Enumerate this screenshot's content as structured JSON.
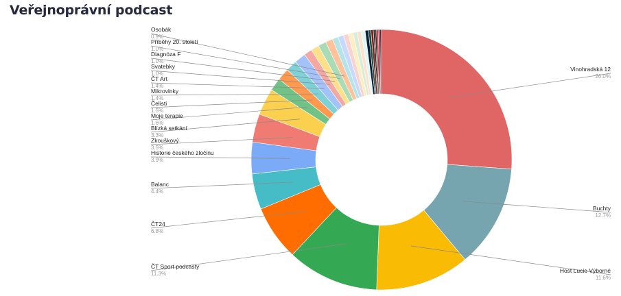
{
  "title": "Veřejnoprávní podcast",
  "chart_data": {
    "type": "pie",
    "donut": true,
    "title": "Veřejnoprávní podcast",
    "slices": [
      {
        "label": "Vinohradská 12",
        "value": 26.0,
        "pct": "26.0%",
        "color": "#e06666"
      },
      {
        "label": "Buchty",
        "value": 12.7,
        "pct": "12.7%",
        "color": "#76a5af"
      },
      {
        "label": "Host Lucie Výborné",
        "value": 11.6,
        "pct": "11.6%",
        "color": "#f9bb04"
      },
      {
        "label": "ČT Sport podcasty",
        "value": 11.3,
        "pct": "11.3%",
        "color": "#34a853"
      },
      {
        "label": "ČT24",
        "value": 6.8,
        "pct": "6.8%",
        "color": "#ff6d01"
      },
      {
        "label": "Balanc",
        "value": 4.4,
        "pct": "4.4%",
        "color": "#46bdc6"
      },
      {
        "label": "Historie českého zločinu",
        "value": 3.9,
        "pct": "3.9%",
        "color": "#7baaf7"
      },
      {
        "label": "Zkouškový",
        "value": 3.5,
        "pct": "3.5%",
        "color": "#f07b72"
      },
      {
        "label": "Blízká setkání",
        "value": 3.3,
        "pct": "3.3%",
        "color": "#fcd04f"
      },
      {
        "label": "Moje terapie",
        "value": 1.6,
        "pct": "1.6%",
        "color": "#71c287"
      },
      {
        "label": "Čelisti",
        "value": 1.5,
        "pct": "1.5%",
        "color": "#ff994d"
      },
      {
        "label": "Mikrovlnky",
        "value": 1.4,
        "pct": "1.4%",
        "color": "#7ed1d7"
      },
      {
        "label": "ČT Art",
        "value": 1.4,
        "pct": "1.4%",
        "color": "#a3c2fa"
      },
      {
        "label": "Svatebky",
        "value": 1.0,
        "pct": "1.0%",
        "color": "#f4a7a3"
      },
      {
        "label": "Diagnóza F",
        "value": 1.0,
        "pct": "1.0%",
        "color": "#fde08a"
      },
      {
        "label": "Příběhy 20. století",
        "value": 1.0,
        "pct": "1.0%",
        "color": "#a9dbb6"
      },
      {
        "label": "Osobák",
        "value": 0.9,
        "pct": "0.9%",
        "color": "#ffc29a"
      },
      {
        "label": "",
        "value": 0.7,
        "pct": "",
        "color": "#b3e5e8"
      },
      {
        "label": "",
        "value": 0.7,
        "pct": "",
        "color": "#c8dafc"
      },
      {
        "label": "",
        "value": 0.6,
        "pct": "",
        "color": "#fad3d0"
      },
      {
        "label": "",
        "value": 0.6,
        "pct": "",
        "color": "#feefc3"
      },
      {
        "label": "",
        "value": 0.5,
        "pct": "",
        "color": "#d4eedb"
      },
      {
        "label": "",
        "value": 0.5,
        "pct": "",
        "color": "#ffe0cc"
      },
      {
        "label": "",
        "value": 0.5,
        "pct": "",
        "color": "#e0f5f6"
      },
      {
        "label": "",
        "value": 0.4,
        "pct": "",
        "color": "#0b1f3a"
      },
      {
        "label": "",
        "value": 0.3,
        "pct": "",
        "color": "#1c4e3a"
      },
      {
        "label": "",
        "value": 0.3,
        "pct": "",
        "color": "#7a1f1f"
      },
      {
        "label": "",
        "value": 0.2,
        "pct": "",
        "color": "#1a1a1a"
      },
      {
        "label": "",
        "value": 0.2,
        "pct": "",
        "color": "#3d2b1f"
      },
      {
        "label": "",
        "value": 0.2,
        "pct": "",
        "color": "#e8213a"
      },
      {
        "label": "",
        "value": 0.2,
        "pct": "",
        "color": "#2b2b2b"
      },
      {
        "label": "",
        "value": 0.2,
        "pct": "",
        "color": "#7b1f2a"
      }
    ]
  }
}
